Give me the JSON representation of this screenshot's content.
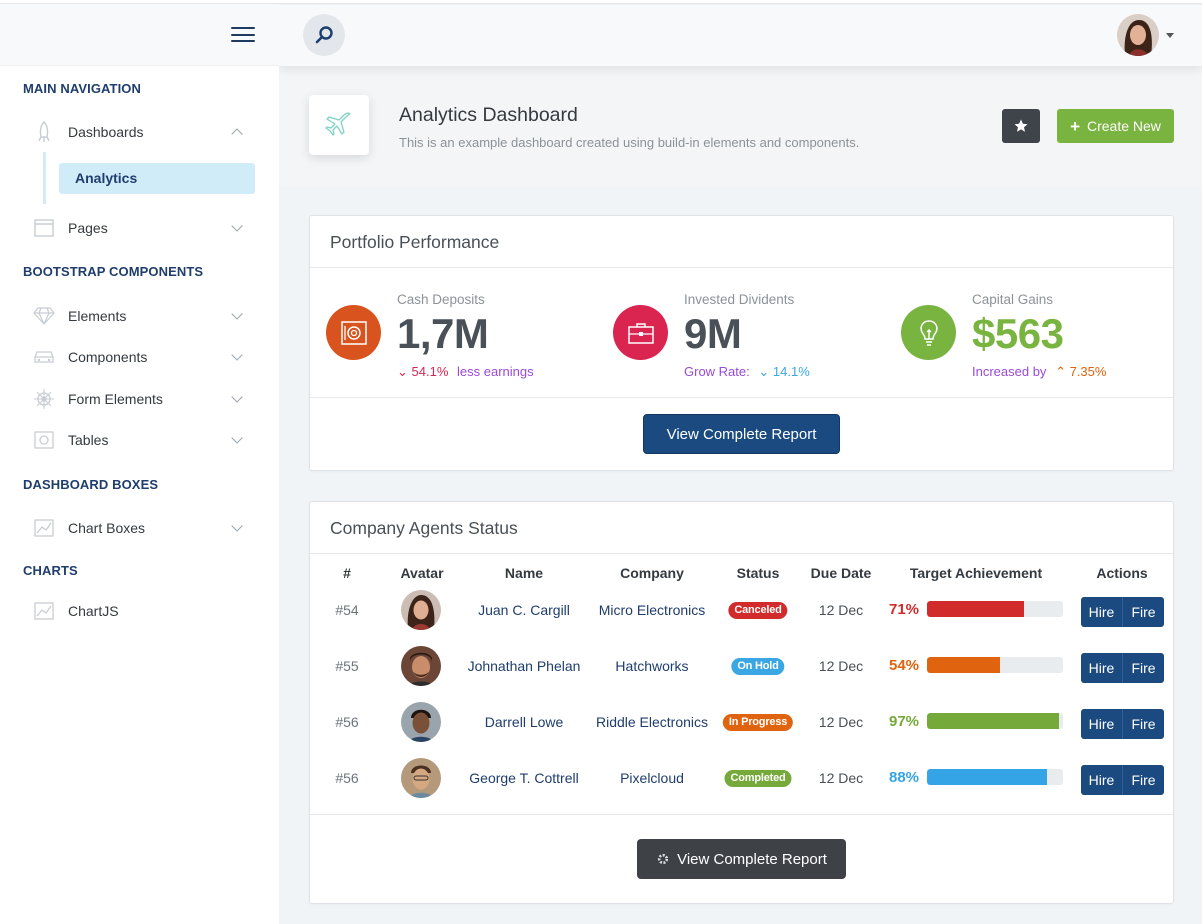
{
  "sidebar": {
    "sections": {
      "main": "MAIN NAVIGATION",
      "bootstrap": "BOOTSTRAP COMPONENTS",
      "boxes": "DASHBOARD BOXES",
      "charts": "CHARTS"
    },
    "items": {
      "dashboards": "Dashboards",
      "analytics": "Analytics",
      "pages": "Pages",
      "elements": "Elements",
      "components": "Components",
      "form_elements": "Form Elements",
      "tables": "Tables",
      "chart_boxes": "Chart Boxes",
      "chartjs": "ChartJS"
    }
  },
  "page": {
    "title": "Analytics Dashboard",
    "subtitle": "This is an example dashboard created using build-in elements and components.",
    "create_label": "Create New"
  },
  "portfolio": {
    "title": "Portfolio Performance",
    "cash": {
      "label": "Cash Deposits",
      "value": "1,7M",
      "change": "54.1%",
      "note": "less earnings",
      "color": "#d9531e"
    },
    "invested": {
      "label": "Invested Dividents",
      "value": "9M",
      "note": "Grow Rate:",
      "change": "14.1%",
      "color": "#d92550"
    },
    "gains": {
      "label": "Capital Gains",
      "value": "$563",
      "note": "Increased by",
      "change": "7.35%",
      "color": "#7ab440"
    },
    "report_label": "View Complete Report"
  },
  "agents": {
    "title": "Company Agents Status",
    "headers": {
      "num": "#",
      "avatar": "Avatar",
      "name": "Name",
      "company": "Company",
      "status": "Status",
      "due": "Due Date",
      "target": "Target Achievement",
      "actions": "Actions"
    },
    "rows": [
      {
        "num": "#54",
        "name": "Juan C. Cargill",
        "company": "Micro Electronics",
        "status": "Canceled",
        "status_color": "#d12b2b",
        "due": "12 Dec",
        "pct": "71%",
        "pct_value": 71,
        "bar_color": "#d12b2b",
        "hire": "Hire",
        "fire": "Fire"
      },
      {
        "num": "#55",
        "name": "Johnathan Phelan",
        "company": "Hatchworks",
        "status": "On Hold",
        "status_color": "#3aa6e3",
        "due": "12 Dec",
        "pct": "54%",
        "pct_value": 54,
        "bar_color": "#e0630f",
        "hire": "Hire",
        "fire": "Fire"
      },
      {
        "num": "#56",
        "name": "Darrell Lowe",
        "company": "Riddle Electronics",
        "status": "In Progress",
        "status_color": "#e0630f",
        "due": "12 Dec",
        "pct": "97%",
        "pct_value": 97,
        "bar_color": "#75a93a",
        "hire": "Hire",
        "fire": "Fire"
      },
      {
        "num": "#56",
        "name": "George T. Cottrell",
        "company": "Pixelcloud",
        "status": "Completed",
        "status_color": "#75a93a",
        "due": "12 Dec",
        "pct": "88%",
        "pct_value": 88,
        "bar_color": "#34a4e6",
        "hire": "Hire",
        "fire": "Fire"
      }
    ],
    "report_label": "View Complete Report"
  }
}
